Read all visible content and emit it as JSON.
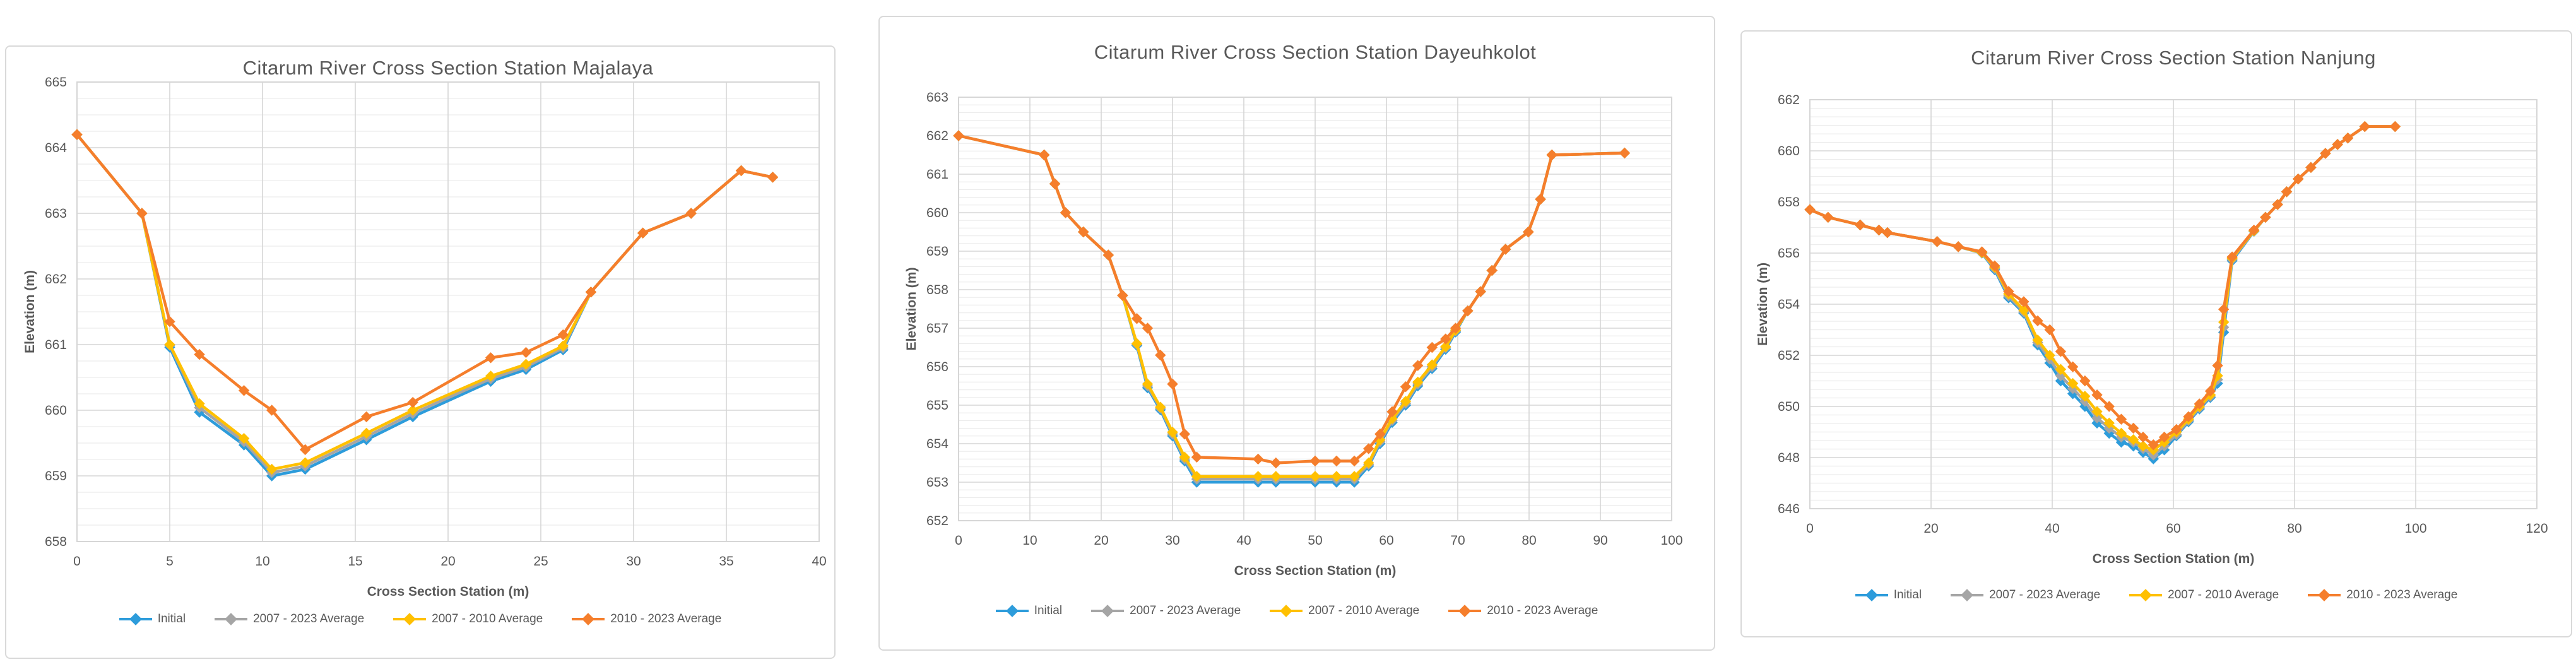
{
  "page": {
    "background": "#ffffff",
    "text_color": "#595959",
    "grid_major_color": "#d6d6d6",
    "grid_minor_color": "#ececec",
    "plot_border_color": "#d0d0d0"
  },
  "chart_data": [
    {
      "type": "line",
      "title": "Citarum River Cross Section Station Majalaya",
      "xlabel": "Cross Section Station (m)",
      "ylabel": "Elevation (m)",
      "xlim": [
        0,
        40
      ],
      "xtick_step": 5,
      "ylim": [
        658,
        665
      ],
      "ytick_step": 1,
      "yminor_step": 0.25,
      "grid": true,
      "legend_position": "bottom",
      "x": [
        0,
        3.5,
        5,
        6.6,
        9,
        10.5,
        12.3,
        15.6,
        18.1,
        22.3,
        24.2,
        26.2,
        27.7,
        30.5,
        33.1,
        35.8,
        37.5
      ],
      "series": [
        {
          "name": "Initial",
          "color": "#2D9CDB",
          "values": [
            664.2,
            663.0,
            660.96,
            659.97,
            659.47,
            659.0,
            659.1,
            659.55,
            659.9,
            660.44,
            660.62,
            660.92,
            661.8,
            662.7,
            663.0,
            663.65,
            663.55
          ]
        },
        {
          "name": "2007 - 2023 Average",
          "color": "#A5A5A5",
          "values": [
            664.2,
            663.0,
            660.99,
            660.04,
            659.52,
            659.05,
            659.15,
            659.6,
            659.95,
            660.48,
            660.66,
            660.95,
            661.8,
            662.7,
            663.0,
            663.65,
            663.55
          ]
        },
        {
          "name": "2007 - 2010 Average",
          "color": "#FFC000",
          "values": [
            664.2,
            663.0,
            661.0,
            660.1,
            659.57,
            659.1,
            659.2,
            659.65,
            660.0,
            660.52,
            660.7,
            660.98,
            661.8,
            662.7,
            663.0,
            663.65,
            663.55
          ]
        },
        {
          "name": "2010 - 2023 Average",
          "color": "#F57E2C",
          "values": [
            664.2,
            663.0,
            661.35,
            660.85,
            660.3,
            660.0,
            659.4,
            659.9,
            660.12,
            660.8,
            660.88,
            661.15,
            661.8,
            662.7,
            663.0,
            663.65,
            663.55
          ]
        }
      ]
    },
    {
      "type": "line",
      "title": "Citarum River Cross Section Station Dayeuhkolot",
      "xlabel": "Cross Section Station (m)",
      "ylabel": "Elevation (m)",
      "xlim": [
        0,
        100
      ],
      "xtick_step": 10,
      "ylim": [
        652,
        663
      ],
      "ytick_step": 1,
      "yminor_step": 0.2,
      "grid": true,
      "legend_position": "bottom",
      "x": [
        0,
        12,
        13.5,
        15,
        17.5,
        21,
        23,
        25,
        26.5,
        28.3,
        30,
        31.7,
        33.4,
        42,
        44.5,
        50,
        53,
        55.5,
        57.5,
        59.1,
        60.8,
        62.7,
        64.4,
        66.4,
        68.3,
        69.7,
        71.4,
        73.2,
        74.8,
        76.7,
        79.9,
        81.6,
        83.2,
        93.4
      ],
      "series": [
        {
          "name": "Initial",
          "color": "#2D9CDB",
          "values": [
            662.0,
            661.5,
            660.75,
            660.0,
            659.5,
            658.9,
            657.85,
            656.55,
            655.45,
            654.88,
            654.2,
            653.55,
            653.0,
            653.0,
            653.0,
            653.0,
            653.0,
            653.0,
            653.42,
            654.0,
            654.55,
            655.0,
            655.5,
            655.95,
            656.45,
            656.9,
            657.45,
            657.95,
            658.5,
            659.05,
            659.5,
            660.35,
            661.5,
            661.55
          ]
        },
        {
          "name": "2007 - 2023 Average",
          "color": "#A5A5A5",
          "values": [
            662.0,
            661.5,
            660.75,
            660.0,
            659.5,
            658.9,
            657.85,
            656.58,
            655.5,
            654.92,
            654.25,
            653.6,
            653.08,
            653.08,
            653.08,
            653.08,
            653.08,
            653.08,
            653.46,
            654.05,
            654.6,
            655.05,
            655.55,
            656.0,
            656.49,
            656.93,
            657.45,
            657.95,
            658.5,
            659.05,
            659.5,
            660.35,
            661.5,
            661.55
          ]
        },
        {
          "name": "2007 - 2010 Average",
          "color": "#FFC000",
          "values": [
            662.0,
            661.5,
            660.75,
            660.0,
            659.5,
            658.9,
            657.85,
            656.6,
            655.55,
            654.95,
            654.3,
            653.65,
            653.15,
            653.15,
            653.15,
            653.15,
            653.15,
            653.15,
            653.5,
            654.1,
            654.65,
            655.1,
            655.6,
            656.05,
            656.52,
            656.95,
            657.45,
            657.95,
            658.5,
            659.05,
            659.5,
            660.35,
            661.5,
            661.55
          ]
        },
        {
          "name": "2010 - 2023 Average",
          "color": "#F57E2C",
          "values": [
            662.0,
            661.5,
            660.75,
            660.0,
            659.5,
            658.9,
            657.85,
            657.25,
            657.0,
            656.3,
            655.55,
            654.25,
            653.65,
            653.6,
            653.5,
            653.55,
            653.55,
            653.55,
            653.87,
            654.25,
            654.83,
            655.48,
            656.03,
            656.5,
            656.72,
            657.0,
            657.45,
            657.95,
            658.5,
            659.05,
            659.5,
            660.35,
            661.5,
            661.55
          ]
        }
      ]
    },
    {
      "type": "line",
      "title": "Citarum River Cross Section Station Nanjung",
      "xlabel": "Cross Section Station (m)",
      "ylabel": "Elevation (m)",
      "xlim": [
        0,
        120
      ],
      "xtick_step": 20,
      "ylim": [
        646,
        662
      ],
      "ytick_step": 2,
      "yminor_step": 0.3333,
      "grid": true,
      "legend_position": "bottom",
      "x": [
        0,
        3,
        8.3,
        11.4,
        12.8,
        21,
        24.5,
        28.4,
        30.5,
        32.8,
        35.3,
        37.6,
        39.6,
        41.4,
        43.4,
        45.4,
        47.4,
        49.4,
        51.4,
        53.4,
        55,
        56.7,
        58.5,
        60.5,
        62.5,
        64.3,
        66.1,
        67.3,
        68.3,
        69.7,
        73.3,
        75.2,
        77.2,
        78.7,
        80.6,
        82.7,
        85.1,
        87.1,
        88.8,
        91.6,
        96.6
      ],
      "series": [
        {
          "name": "Initial",
          "color": "#2D9CDB",
          "values": [
            657.7,
            657.4,
            657.1,
            656.9,
            656.8,
            656.45,
            656.25,
            656.0,
            655.35,
            654.25,
            653.65,
            652.4,
            651.7,
            651.0,
            650.5,
            650.0,
            649.35,
            648.95,
            648.6,
            648.45,
            648.2,
            647.95,
            648.3,
            648.85,
            649.4,
            649.9,
            650.35,
            650.9,
            652.9,
            655.7,
            656.85,
            657.4,
            657.9,
            658.4,
            658.9,
            659.35,
            659.9,
            660.25,
            660.5,
            660.95,
            660.95
          ]
        },
        {
          "name": "2007 - 2023 Average",
          "color": "#A5A5A5",
          "values": [
            657.7,
            657.4,
            657.1,
            656.9,
            656.8,
            656.45,
            656.25,
            656.01,
            655.4,
            654.32,
            653.7,
            652.5,
            651.85,
            651.2,
            650.7,
            650.2,
            649.55,
            649.15,
            648.8,
            648.6,
            648.35,
            648.1,
            648.45,
            648.9,
            649.45,
            649.95,
            650.4,
            651.05,
            653.1,
            655.75,
            656.86,
            657.4,
            657.9,
            658.4,
            658.9,
            659.35,
            659.9,
            660.25,
            660.5,
            660.95,
            660.95
          ]
        },
        {
          "name": "2007 - 2010 Average",
          "color": "#FFC000",
          "values": [
            657.7,
            657.4,
            657.1,
            656.9,
            656.8,
            656.45,
            656.25,
            656.02,
            655.45,
            654.4,
            653.77,
            652.6,
            652.0,
            651.45,
            650.9,
            650.4,
            649.8,
            649.35,
            648.95,
            648.7,
            648.45,
            648.3,
            648.6,
            649.0,
            649.5,
            650.0,
            650.45,
            651.2,
            653.3,
            655.8,
            656.87,
            657.4,
            657.9,
            658.4,
            658.9,
            659.35,
            659.9,
            660.25,
            660.5,
            660.95,
            660.95
          ]
        },
        {
          "name": "2010 - 2023 Average",
          "color": "#F57E2C",
          "values": [
            657.7,
            657.4,
            657.1,
            656.9,
            656.8,
            656.45,
            656.25,
            656.05,
            655.5,
            654.5,
            654.1,
            653.35,
            653.0,
            652.15,
            651.55,
            651.0,
            650.45,
            650.0,
            649.5,
            649.15,
            648.8,
            648.5,
            648.8,
            649.1,
            649.6,
            650.1,
            650.6,
            651.6,
            653.8,
            655.85,
            656.9,
            657.4,
            657.9,
            658.4,
            658.9,
            659.35,
            659.9,
            660.25,
            660.5,
            660.95,
            660.95
          ]
        }
      ]
    }
  ]
}
